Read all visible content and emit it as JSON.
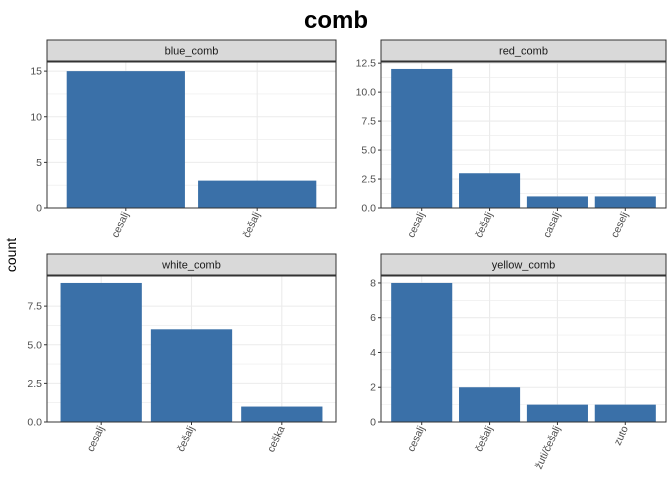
{
  "figure": {
    "title": "comb",
    "ylabel": "count",
    "bar_color": "#3A70A8",
    "grid_color": "#EBEBEB",
    "strip_fill": "#D9D9D9"
  },
  "chart_data": [
    {
      "type": "bar",
      "panel": "blue_comb",
      "categories": [
        "cesalj",
        "češalj"
      ],
      "values": [
        15,
        3
      ],
      "ylim": [
        0,
        16
      ],
      "yticks": [
        0,
        5,
        10,
        15
      ],
      "ytick_labels": [
        "0",
        "5",
        "10",
        "15"
      ],
      "grid": true
    },
    {
      "type": "bar",
      "panel": "red_comb",
      "categories": [
        "cesalj",
        "češalj",
        "casalj",
        "ceselj"
      ],
      "values": [
        12,
        3,
        1,
        1
      ],
      "ylim": [
        0,
        12.6
      ],
      "yticks": [
        0,
        2.5,
        5,
        7.5,
        10,
        12.5
      ],
      "ytick_labels": [
        "0.0",
        "2.5",
        "5.0",
        "7.5",
        "10.0",
        "12.5"
      ],
      "grid": true
    },
    {
      "type": "bar",
      "panel": "white_comb",
      "categories": [
        "cesalj",
        "češalj",
        "ceška"
      ],
      "values": [
        9,
        6,
        1
      ],
      "ylim": [
        0,
        9.45
      ],
      "yticks": [
        0,
        2.5,
        5,
        7.5
      ],
      "ytick_labels": [
        "0.0",
        "2.5",
        "5.0",
        "7.5"
      ],
      "grid": true
    },
    {
      "type": "bar",
      "panel": "yellow_comb",
      "categories": [
        "cesalj",
        "češalj",
        "žuti/češalj",
        "zuto"
      ],
      "values": [
        8,
        2,
        1,
        1
      ],
      "ylim": [
        0,
        8.4
      ],
      "yticks": [
        0,
        2,
        4,
        6,
        8
      ],
      "ytick_labels": [
        "0",
        "2",
        "4",
        "6",
        "8"
      ],
      "grid": true
    }
  ]
}
